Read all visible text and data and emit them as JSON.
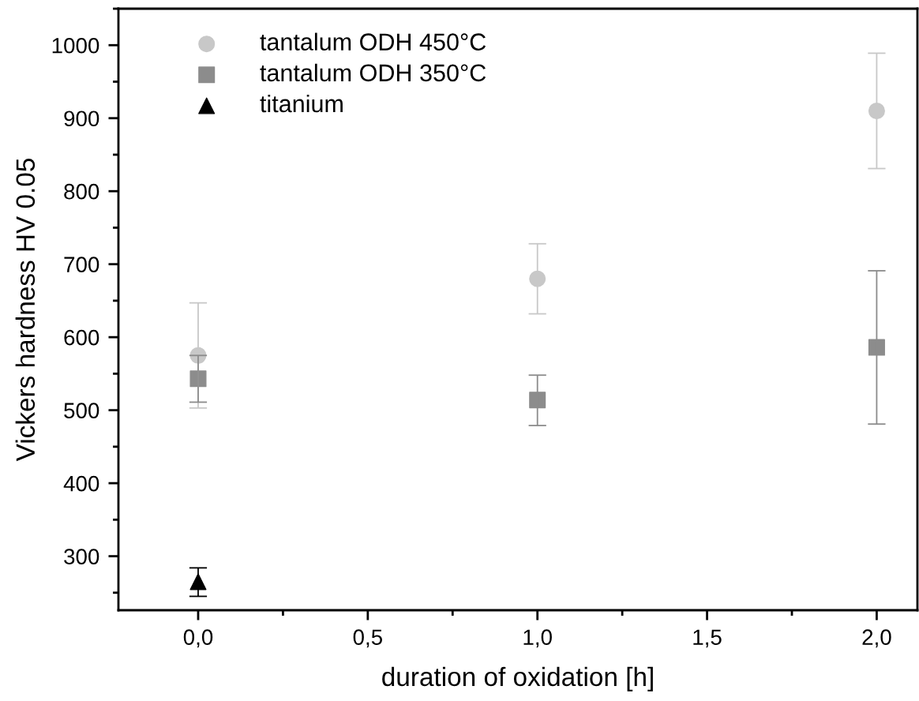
{
  "chart_data": {
    "type": "scatter",
    "xlabel": "duration of oxidation [h]",
    "ylabel": "Vickers hardness HV 0.05",
    "xlim": [
      -0.235,
      2.12
    ],
    "xticks": [
      {
        "value": 0,
        "label": "0,0"
      },
      {
        "value": 0.5,
        "label": "0,5"
      },
      {
        "value": 1,
        "label": "1,0"
      },
      {
        "value": 1.5,
        "label": "1,5"
      },
      {
        "value": 2,
        "label": "2,0"
      }
    ],
    "ylim": [
      226,
      1050
    ],
    "yticks": [
      300,
      400,
      500,
      600,
      700,
      800,
      900,
      1000
    ],
    "grid": false,
    "legend": "top left",
    "series": [
      {
        "name": "tantalum ODH 450°C",
        "color": "#c8c8c8",
        "marker": "circle",
        "x": [
          0,
          1,
          2
        ],
        "values": [
          575,
          680,
          910
        ],
        "errors": [
          [
            503,
            647
          ],
          [
            632,
            728
          ],
          [
            831,
            989
          ]
        ]
      },
      {
        "name": "tantalum ODH 350°C",
        "color": "#8c8c8c",
        "marker": "square",
        "x": [
          0,
          1,
          2
        ],
        "values": [
          543,
          514,
          586
        ],
        "errors": [
          [
            511,
            575
          ],
          [
            479,
            548
          ],
          [
            481,
            691
          ]
        ]
      },
      {
        "name": "titanium",
        "color": "#000000",
        "marker": "triangle",
        "x": [
          0
        ],
        "values": [
          265
        ],
        "errors": [
          [
            245,
            284
          ]
        ]
      }
    ]
  }
}
